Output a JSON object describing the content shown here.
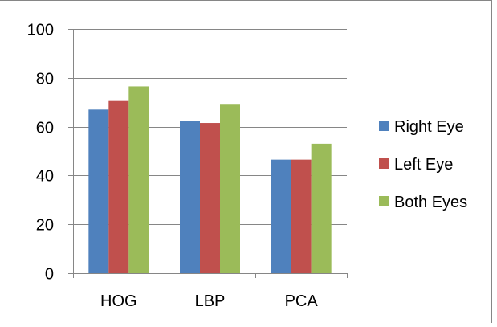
{
  "chart_data": {
    "type": "bar",
    "categories": [
      "HOG",
      "LBP",
      "PCA"
    ],
    "series": [
      {
        "name": "Right Eye",
        "values": [
          67,
          62.5,
          46.5
        ],
        "color": "#4F81BD"
      },
      {
        "name": "Left Eye",
        "values": [
          70.5,
          61.5,
          46.5
        ],
        "color": "#C0504D"
      },
      {
        "name": "Both Eyes",
        "values": [
          76.5,
          69,
          53
        ],
        "color": "#9BBB59"
      }
    ],
    "ylim": [
      0,
      100
    ],
    "yticks": [
      0,
      20,
      40,
      60,
      80,
      100
    ],
    "grid": true,
    "legend_position": "right",
    "title": "",
    "xlabel": "",
    "ylabel": ""
  }
}
